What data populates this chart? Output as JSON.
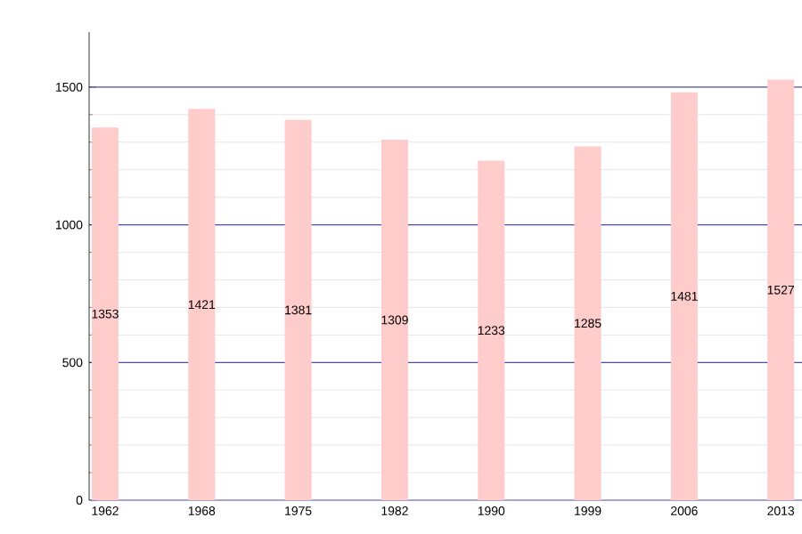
{
  "chart_data": {
    "type": "bar",
    "categories": [
      "1962",
      "1968",
      "1975",
      "1982",
      "1990",
      "1999",
      "2006",
      "2013"
    ],
    "values": [
      1353,
      1421,
      1381,
      1309,
      1233,
      1285,
      1481,
      1527
    ],
    "color": "#ffcccc",
    "ylim": [
      0,
      1700
    ],
    "yticks": [
      0,
      500,
      1000,
      1500
    ],
    "grid": "y",
    "data_labels": true
  }
}
